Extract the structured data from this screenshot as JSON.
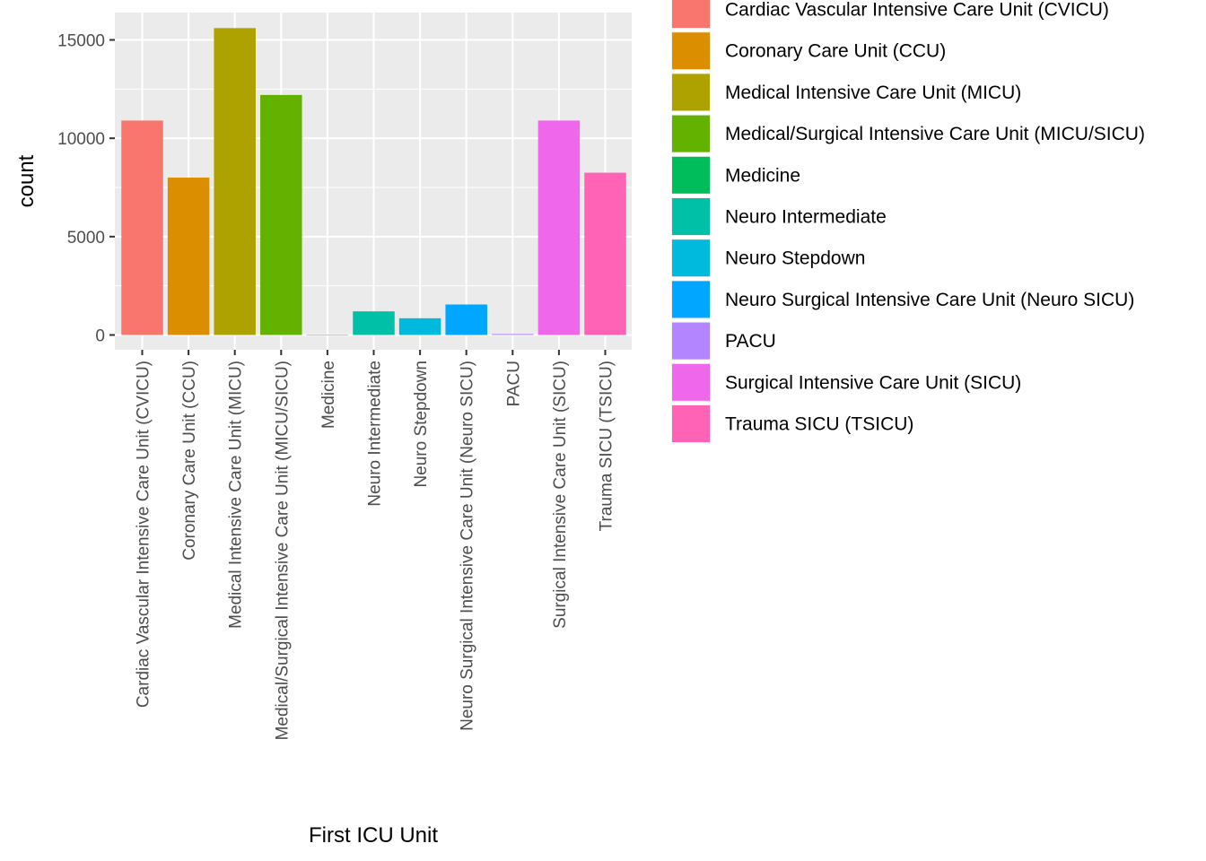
{
  "chart_data": {
    "type": "bar",
    "categories": [
      "Cardiac Vascular Intensive Care Unit (CVICU)",
      "Coronary Care Unit (CCU)",
      "Medical Intensive Care Unit (MICU)",
      "Medical/Surgical Intensive Care Unit (MICU/SICU)",
      "Medicine",
      "Neuro Intermediate",
      "Neuro Stepdown",
      "Neuro Surgical Intensive Care Unit (Neuro SICU)",
      "PACU",
      "Surgical Intensive Care Unit (SICU)",
      "Trauma SICU (TSICU)"
    ],
    "values": [
      10900,
      8000,
      15600,
      12200,
      20,
      1200,
      850,
      1550,
      50,
      10900,
      8250
    ],
    "colors": [
      "#F8766D",
      "#DB8E00",
      "#AEA200",
      "#64B200",
      "#00BD5C",
      "#00C1A7",
      "#00BADE",
      "#00A6FF",
      "#B385FF",
      "#EF67EB",
      "#FF63B6"
    ],
    "xlabel": "First ICU Unit",
    "ylabel": "count",
    "ylim": [
      0,
      16200
    ],
    "yticks": [
      0,
      5000,
      10000,
      15000
    ],
    "ytick_labels": [
      "0",
      "5000",
      "10000",
      "15000"
    ],
    "grid": true,
    "panel_background": "#EBEBEB",
    "legend_position": "right",
    "legend_entries": [
      "Cardiac Vascular Intensive Care Unit (CVICU)",
      "Coronary Care Unit (CCU)",
      "Medical Intensive Care Unit (MICU)",
      "Medical/Surgical Intensive Care Unit (MICU/SICU)",
      "Medicine",
      "Neuro Intermediate",
      "Neuro Stepdown",
      "Neuro Surgical Intensive Care Unit (Neuro SICU)",
      "PACU",
      "Surgical Intensive Care Unit (SICU)",
      "Trauma SICU (TSICU)"
    ]
  }
}
